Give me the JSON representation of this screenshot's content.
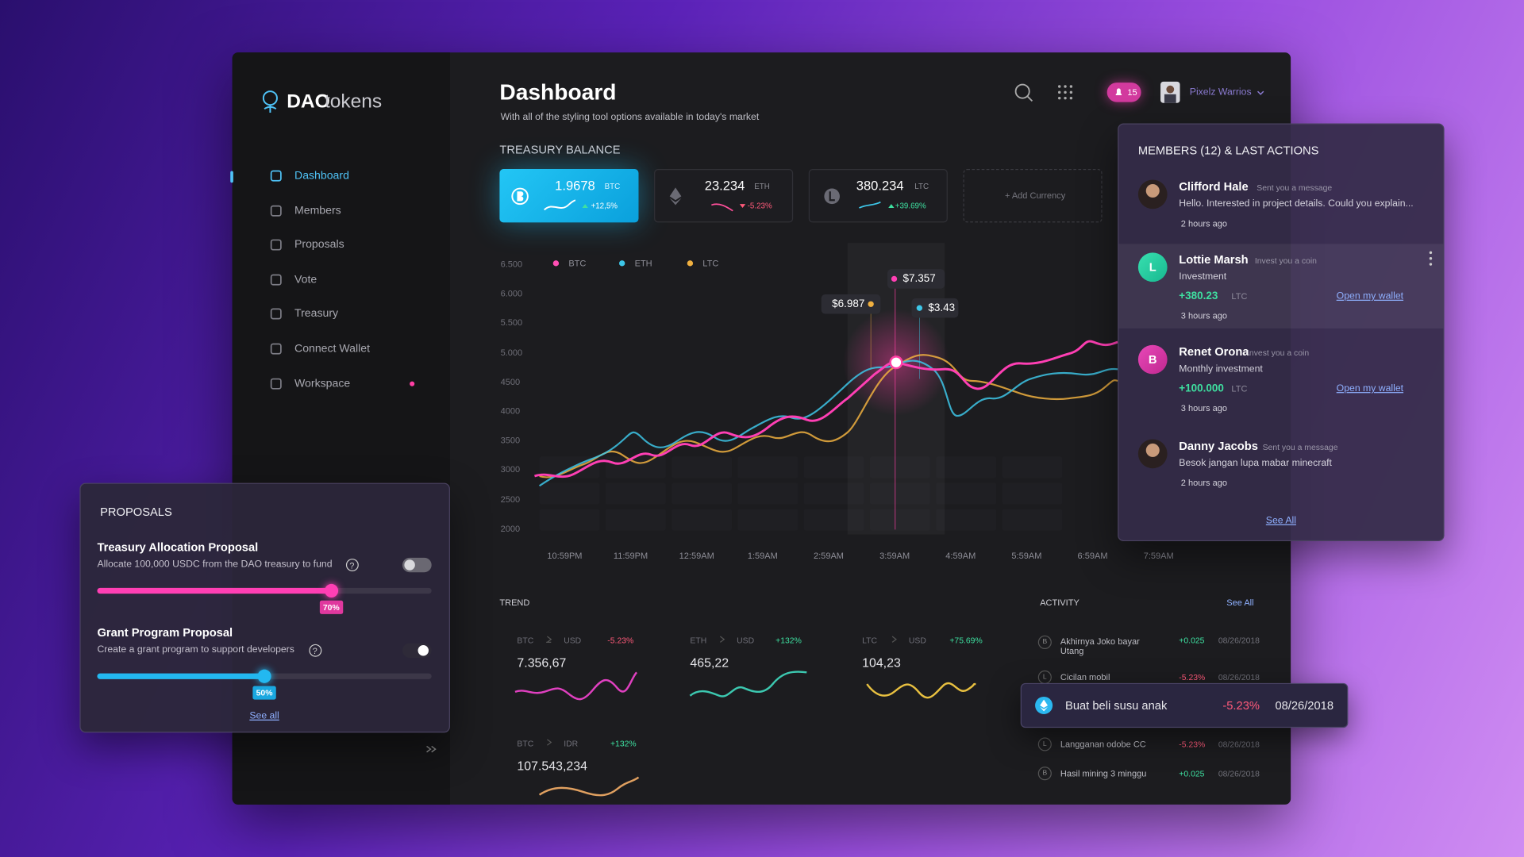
{
  "sidebar": {
    "logo_bold": "DAO",
    "logo_light": "tokens",
    "nav": [
      "Dashboard",
      "Members",
      "Proposals",
      "Vote",
      "Treasury",
      "Connect Wallet",
      "Workspace"
    ]
  },
  "header": {
    "title": "Dashboard",
    "subtitle": "With all of the styling tool options available in today's market",
    "notifications": "15",
    "user": "Pixelz Warrios"
  },
  "treasury": {
    "title": "TREASURY BALANCE",
    "cards": [
      {
        "amount": "1.9678",
        "symbol": "BTC",
        "change": "+12,5%"
      },
      {
        "amount": "23.234",
        "symbol": "ETH",
        "change": "-5.23%"
      },
      {
        "amount": "380.234",
        "symbol": "LTC",
        "change": "+39.69%"
      }
    ],
    "add": "+ Add Currency"
  },
  "chart": {
    "legend": [
      "BTC",
      "ETH",
      "LTC"
    ],
    "yticks": [
      "6.500",
      "6.000",
      "5.500",
      "5.000",
      "4500",
      "4000",
      "3500",
      "3000",
      "2500",
      "2000"
    ],
    "xticks": [
      "10:59PM",
      "11:59PM",
      "12:59AM",
      "1:59AM",
      "2:59AM",
      "3:59AM",
      "4:59AM",
      "5:59AM",
      "6:59AM",
      "7:59AM"
    ],
    "tooltips": [
      "$7.357",
      "$6.987",
      "$3.43"
    ]
  },
  "trend": {
    "title": "TREND",
    "items": [
      {
        "from": "BTC",
        "to": "USD",
        "change": "-5.23%",
        "value": "7.356,67"
      },
      {
        "from": "ETH",
        "to": "USD",
        "change": "+132%",
        "value": "465,22"
      },
      {
        "from": "LTC",
        "to": "USD",
        "change": "+75.69%",
        "value": "104,23"
      },
      {
        "from": "BTC",
        "to": "IDR",
        "change": "+132%",
        "value": "107.543,234"
      }
    ]
  },
  "activity": {
    "title": "ACTIVITY",
    "see_all": "See All",
    "rows": [
      {
        "icon": "B",
        "label": "Akhirnya Joko bayar Utang",
        "change": "+0.025",
        "date": "08/26/2018"
      },
      {
        "icon": "L",
        "label": "Cicilan mobil",
        "change": "-5.23%",
        "date": "08/26/2018"
      },
      {
        "icon": "L",
        "label": "Langganan odobe CC",
        "change": "-5.23%",
        "date": "08/26/2018"
      },
      {
        "icon": "B",
        "label": "Hasil mining 3 minggu",
        "change": "+0.025",
        "date": "08/26/2018"
      }
    ],
    "highlight": {
      "label": "Buat beli susu anak",
      "change": "-5.23%",
      "date": "08/26/2018"
    }
  },
  "members": {
    "title": "MEMBERS (12) & LAST ACTIONS",
    "see_all": "See All",
    "items": [
      {
        "name": "Clifford Hale",
        "action": "Sent you a message",
        "text": "Hello. Interested in project details. Could you explain...",
        "time": "2 hours ago"
      },
      {
        "initial": "L",
        "name": "Lottie Marsh",
        "action": "Invest you a coin",
        "text": "Investment",
        "amount": "+380.23",
        "currency": "LTC",
        "link": "Open my wallet",
        "time": "3 hours ago"
      },
      {
        "initial": "B",
        "name": "Renet Orona",
        "action": "Invest you a coin",
        "text": "Monthly investment",
        "amount": "+100.000",
        "currency": "LTC",
        "link": "Open my wallet",
        "time": "3 hours ago"
      },
      {
        "name": "Danny Jacobs",
        "action": "Sent you a message",
        "text": "Besok jangan lupa mabar minecraft",
        "time": "2 hours ago"
      }
    ]
  },
  "proposals": {
    "title": "PROPOSALS",
    "see_all": "See all",
    "items": [
      {
        "title": "Treasury Allocation Proposal",
        "desc": "Allocate 100,000 USDC from the DAO treasury to fund",
        "enabled": false,
        "progress": 70,
        "progress_label": "70%"
      },
      {
        "title": "Grant Program Proposal",
        "desc": "Create a grant program to support developers",
        "enabled": true,
        "progress": 50,
        "progress_label": "50%"
      }
    ]
  }
}
